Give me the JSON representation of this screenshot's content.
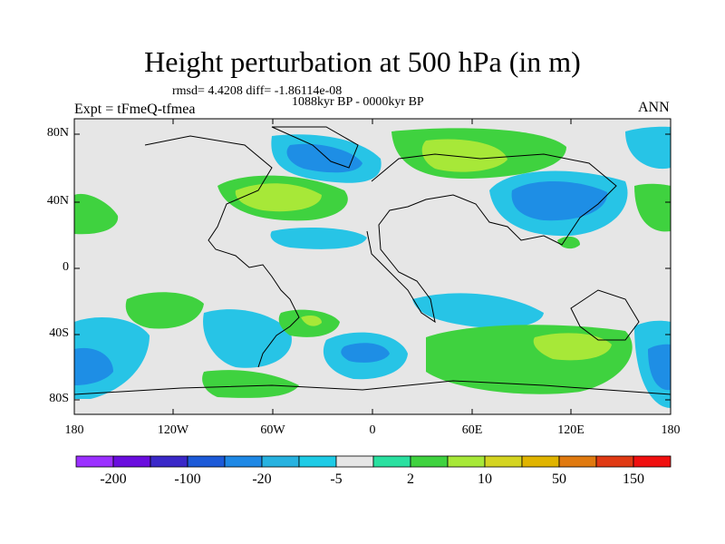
{
  "title": "Height perturbation at 500 hPa (in m)",
  "stats_text": "rmsd= 4.4208  diff= -1.86114e-08",
  "period_text": "1088kyr BP - 0000kyr BP",
  "experiment_text": "Expt = tFmeQ-tfmea",
  "season_text": "ANN",
  "lat_labels": [
    "80N",
    "40N",
    "0",
    "40S",
    "80S"
  ],
  "lon_labels": [
    "180",
    "120W",
    "60W",
    "0",
    "60E",
    "120E",
    "180"
  ],
  "colorbar": {
    "colors": [
      "#9b30ff",
      "#6a0dde",
      "#3a28c8",
      "#1c5ad8",
      "#1e88e5",
      "#27b2e0",
      "#1ecbe6",
      "#e6e6e6",
      "#2ae0a0",
      "#3fd23f",
      "#a7e838",
      "#d4d421",
      "#e0b400",
      "#e07a10",
      "#e03a14",
      "#f01010"
    ],
    "labels": [
      "-200",
      "-100",
      "-20",
      "-5",
      "2",
      "10",
      "50",
      "150"
    ]
  },
  "colors": {
    "background": "#e6e6e6",
    "light_blue": "#27c4e6",
    "mid_blue": "#1e8ee5",
    "dark_blue": "#1c62d8",
    "cyan_green": "#2ae0a0",
    "green": "#3fd23f",
    "yellow_green": "#a7e838"
  }
}
